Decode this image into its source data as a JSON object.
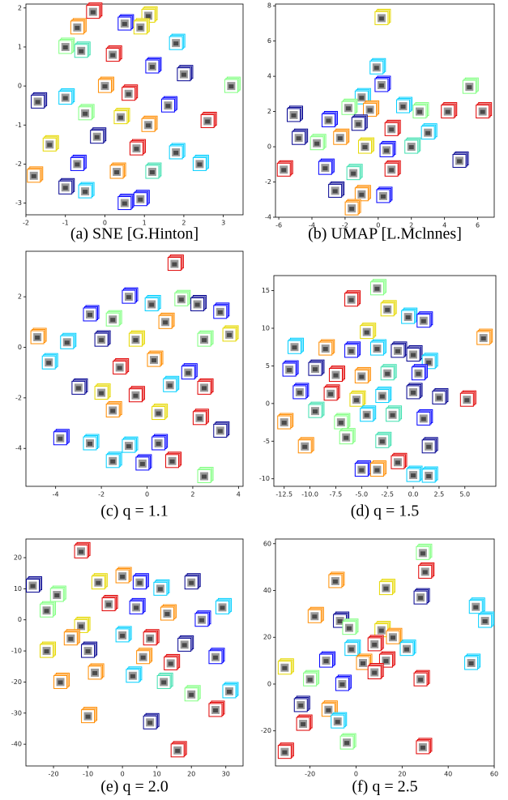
{
  "chart_data": [
    {
      "type": "scatter",
      "caption": "(a) SNE [G.Hinton]",
      "xlim": [
        -2,
        3.5
      ],
      "xticks": [
        -2,
        -1,
        0,
        1,
        2,
        3
      ],
      "ylim": [
        -3.3,
        2.1
      ],
      "yticks": [
        -3,
        -2,
        -1,
        0,
        1,
        2
      ],
      "x": [
        -0.3,
        0.5,
        1.1,
        0.9,
        -0.7,
        -1.0,
        -0.6,
        1.8,
        0.2,
        1.2,
        2.0,
        3.2,
        -1.7,
        -1.0,
        0,
        0.6,
        1.6,
        -0.5,
        0.4,
        1.1,
        2.6,
        -1.4,
        -0.2,
        0.8,
        1.8,
        2.4,
        -1.8,
        -0.7,
        0.3,
        1.2,
        -1.0,
        -0.5,
        0.5,
        0.9
      ],
      "values": [
        1.9,
        1.6,
        1.8,
        1.5,
        1.5,
        1.0,
        0.9,
        1.1,
        0.8,
        0.5,
        0.3,
        0,
        -0.4,
        -0.3,
        0,
        -0.2,
        -0.5,
        -0.7,
        -0.8,
        -1.0,
        -0.9,
        -1.5,
        -1.3,
        -1.6,
        -1.7,
        -2.0,
        -2.3,
        -2.0,
        -2.2,
        -2.2,
        -2.6,
        -2.7,
        -3.0,
        -2.9
      ],
      "colors": [
        "#e00000",
        "#0000ff",
        "#e6d800",
        "#e6d800",
        "#ff8c00",
        "#80ff80",
        "#40e0b0",
        "#00cfff",
        "#e00000",
        "#0000ff",
        "#00008f",
        "#80ff80",
        "#00008f",
        "#00cfff",
        "#ff8c00",
        "#e00000",
        "#0000ff",
        "#80ff80",
        "#e6d800",
        "#ff8c00",
        "#e00000",
        "#e6d800",
        "#00008f",
        "#e00000",
        "#00cfff",
        "#00cfff",
        "#ff8c00",
        "#0000ff",
        "#ff8c00",
        "#40e0b0",
        "#00008f",
        "#00cfff",
        "#0000ff",
        "#0000ff"
      ]
    },
    {
      "type": "scatter",
      "caption": "(b) UMAP [L.Mclnnes]",
      "xlim": [
        -6.2,
        7
      ],
      "xticks": [
        -6,
        -4,
        -2,
        0,
        2,
        4,
        6
      ],
      "ylim": [
        -4,
        8.1
      ],
      "yticks": [
        -4,
        -2,
        0,
        2,
        4,
        6,
        8
      ],
      "x": [
        0.2,
        -0.1,
        0.2,
        -1.0,
        -1.8,
        -0.5,
        1.5,
        2.5,
        4.2,
        5.5,
        6.3,
        -5.1,
        -3,
        -1.2,
        0.8,
        3.0,
        -4.8,
        -3.7,
        -2.3,
        -0.8,
        0.5,
        2.0,
        4.9,
        -5.7,
        -3.2,
        -1.5,
        0.8,
        -2.6,
        -1.0,
        0.3,
        -1.6
      ],
      "values": [
        7.3,
        4.5,
        3.5,
        2.8,
        2.2,
        2.1,
        2.3,
        2.0,
        2.0,
        3.4,
        2.0,
        1.8,
        1.5,
        1.3,
        1.0,
        0.8,
        0.5,
        0.2,
        0.5,
        0.0,
        -0.2,
        0,
        -0.8,
        -1.3,
        -1.2,
        -1.5,
        -1.3,
        -2.5,
        -2.7,
        -2.8,
        -3.5
      ],
      "colors": [
        "#e6d800",
        "#00cfff",
        "#0000ff",
        "#00cfff",
        "#80ff80",
        "#ff8c00",
        "#00cfff",
        "#80ff80",
        "#e00000",
        "#80ff80",
        "#e00000",
        "#00008f",
        "#0000ff",
        "#00008f",
        "#e00000",
        "#00cfff",
        "#00008f",
        "#80ff80",
        "#ff8c00",
        "#e6d800",
        "#0000ff",
        "#40e0b0",
        "#00008f",
        "#e00000",
        "#0000ff",
        "#40e0b0",
        "#e00000",
        "#00008f",
        "#ff8c00",
        "#0000ff",
        "#ff8c00"
      ]
    },
    {
      "type": "scatter",
      "caption": "(c) q = 1.1",
      "xlim": [
        -5.3,
        4.2
      ],
      "xticks": [
        -4,
        -2,
        0,
        2,
        4
      ],
      "ylim": [
        -5.5,
        3.8
      ],
      "yticks": [
        -4,
        -2,
        0,
        2
      ],
      "x": [
        1.2,
        -0.8,
        0.2,
        1.5,
        2.2,
        3.2,
        -2.5,
        -1.5,
        0.8,
        3.6,
        -4.8,
        -3.5,
        -2,
        -0.5,
        2.5,
        -4.3,
        -1.2,
        0.3,
        1.8,
        -3,
        -2.0,
        -0.5,
        1.0,
        2.5,
        -1.5,
        0.5,
        2.3,
        3.2,
        -3.8,
        -2.5,
        -0.8,
        0.5,
        -1.5,
        -0.2,
        1.1,
        2.5
      ],
      "values": [
        3.3,
        2.0,
        1.7,
        1.9,
        1.7,
        1.4,
        1.3,
        1.1,
        1.0,
        0.5,
        0.4,
        0.2,
        0.3,
        0.3,
        0.3,
        -0.6,
        -0.8,
        -0.5,
        -1.0,
        -1.6,
        -1.8,
        -1.9,
        -1.5,
        -1.6,
        -2.5,
        -2.6,
        -2.8,
        -3.3,
        -3.6,
        -3.8,
        -3.9,
        -3.8,
        -4.5,
        -4.6,
        -4.5,
        -5.1
      ],
      "colors": [
        "#e00000",
        "#0000ff",
        "#00cfff",
        "#80ff80",
        "#00008f",
        "#0000ff",
        "#0000ff",
        "#80ff80",
        "#ff8c00",
        "#e6d800",
        "#ff8c00",
        "#00cfff",
        "#00008f",
        "#e6d800",
        "#80ff80",
        "#00cfff",
        "#e00000",
        "#ff8c00",
        "#0000ff",
        "#00008f",
        "#e6d800",
        "#e00000",
        "#00cfff",
        "#e00000",
        "#ff8c00",
        "#e6d800",
        "#e00000",
        "#00008f",
        "#0000ff",
        "#00cfff",
        "#00cfff",
        "#0000ff",
        "#00cfff",
        "#0000ff",
        "#e00000",
        "#80ff80"
      ]
    },
    {
      "type": "scatter",
      "caption": "(d) q = 1.5",
      "xlim": [
        -13.5,
        8
      ],
      "xticks": [
        -12.5,
        {
          "value": -10,
          "label": "-10.0"
        },
        -7.5,
        {
          "value": -5,
          "label": "-5.0"
        },
        -2.5,
        {
          "value": 0,
          "label": "0.0"
        },
        2.5,
        {
          "value": 5,
          "label": "5.0"
        }
      ],
      "ylim": [
        -11,
        17
      ],
      "yticks": [
        -10,
        -5,
        0,
        5,
        10,
        15
      ],
      "x": [
        -3.5,
        -6,
        -2.5,
        -0.5,
        1,
        -4.5,
        6.8,
        -11.5,
        -8.5,
        -6,
        -3.5,
        -1.5,
        0,
        1.5,
        -12,
        -9.5,
        -7.5,
        -5,
        -2.5,
        0.5,
        -11,
        -8,
        -5.5,
        -3,
        0,
        2.5,
        5.2,
        -12.5,
        -9.5,
        -7,
        -4.5,
        -2,
        1,
        -10.5,
        -6.5,
        -3,
        1.5,
        -1.5,
        -5,
        -3.5,
        0,
        1.5
      ],
      "values": [
        15.3,
        13.8,
        12.5,
        11.5,
        11,
        9.5,
        8.7,
        7.5,
        7.3,
        7,
        7.3,
        7,
        6.5,
        5.5,
        4.5,
        4.6,
        3.8,
        3.6,
        4.0,
        4.0,
        1.5,
        1.3,
        0.5,
        1,
        1.5,
        0.8,
        0.5,
        -2.5,
        -1,
        -2.5,
        -1.5,
        -1.5,
        -2,
        -5.7,
        -4.5,
        -5,
        -5.7,
        -7.8,
        -8.8,
        -8.8,
        -9.5,
        -9.6
      ],
      "colors": [
        "#80ff80",
        "#e00000",
        "#e6d800",
        "#00cfff",
        "#0000ff",
        "#e6d800",
        "#ff8c00",
        "#00cfff",
        "#ff8c00",
        "#0000ff",
        "#00cfff",
        "#00008f",
        "#00008f",
        "#00cfff",
        "#0000ff",
        "#00008f",
        "#e00000",
        "#ff8c00",
        "#40e0b0",
        "#0000ff",
        "#0000ff",
        "#e00000",
        "#e6d800",
        "#00cfff",
        "#00008f",
        "#00008f",
        "#e00000",
        "#ff8c00",
        "#40e0b0",
        "#80ff80",
        "#00cfff",
        "#40e0b0",
        "#0000ff",
        "#ff8c00",
        "#80ff80",
        "#40e0b0",
        "#00008f",
        "#e00000",
        "#0000ff",
        "#ff8c00",
        "#00cfff",
        "#00cfff"
      ]
    },
    {
      "type": "scatter",
      "caption": "(e) q = 2.0",
      "xlim": [
        -28,
        35
      ],
      "xticks": [
        -20,
        -10,
        0,
        10,
        20,
        30
      ],
      "ylim": [
        -47,
        26
      ],
      "yticks": [
        -40,
        -30,
        -20,
        -10,
        0,
        10,
        20
      ],
      "x": [
        -26,
        -12,
        -19,
        -7,
        0,
        5,
        11,
        20,
        29,
        -22,
        -12,
        -4,
        4,
        13,
        23,
        -22,
        -15,
        0,
        8,
        18,
        -10,
        6,
        14,
        27,
        -18,
        -8,
        3,
        12,
        20,
        31,
        27,
        -10,
        8,
        16
      ],
      "values": [
        11,
        22,
        8,
        12,
        14,
        12,
        10,
        12,
        4,
        3,
        -2,
        5,
        4,
        2,
        0,
        -10,
        -6,
        -5,
        -6,
        -8,
        -10,
        -12,
        -14,
        -12,
        -20,
        -17,
        -18,
        -20,
        -24,
        -23,
        -29,
        -31,
        -33,
        -42
      ],
      "colors": [
        "#00008f",
        "#e00000",
        "#80ff80",
        "#e6d800",
        "#ff8c00",
        "#0000ff",
        "#00cfff",
        "#00008f",
        "#00cfff",
        "#80ff80",
        "#e6d800",
        "#e00000",
        "#0000ff",
        "#ff8c00",
        "#0000ff",
        "#e6d800",
        "#ff8c00",
        "#00cfff",
        "#e00000",
        "#00008f",
        "#00008f",
        "#ff8c00",
        "#e00000",
        "#0000ff",
        "#ff8c00",
        "#ff8c00",
        "#00cfff",
        "#40e0b0",
        "#80ff80",
        "#00cfff",
        "#e00000",
        "#ff8c00",
        "#00008f",
        "#e00000"
      ]
    },
    {
      "type": "scatter",
      "caption": "(f) q = 2.5",
      "xlim": [
        -35,
        60
      ],
      "xticks": [
        -20,
        0,
        20,
        40,
        60
      ],
      "ylim": [
        -35,
        62
      ],
      "yticks": [
        -20,
        0,
        20,
        40,
        60
      ],
      "x": [
        29,
        30,
        -9,
        13,
        28,
        52,
        56,
        -18,
        -7,
        -3,
        11,
        16,
        -2,
        8,
        22,
        -13,
        3,
        13,
        50,
        -31,
        -20,
        -6,
        8,
        28,
        -24,
        -12,
        -8,
        -4,
        -23,
        -31,
        29
      ],
      "values": [
        56,
        48,
        44,
        41,
        37,
        33,
        27,
        29,
        27,
        24,
        23,
        20,
        15,
        17,
        15,
        10,
        9,
        10,
        9,
        7,
        2,
        0,
        5,
        2,
        -9,
        -11,
        -16,
        -25,
        -17,
        -29,
        -27
      ],
      "colors": [
        "#80ff80",
        "#e00000",
        "#ff8c00",
        "#e6d800",
        "#00008f",
        "#00cfff",
        "#00cfff",
        "#ff8c00",
        "#00008f",
        "#80ff80",
        "#e6d800",
        "#ff8c00",
        "#00cfff",
        "#e00000",
        "#00cfff",
        "#0000ff",
        "#ff8c00",
        "#e00000",
        "#00cfff",
        "#e6d800",
        "#80ff80",
        "#0000ff",
        "#e00000",
        "#e00000",
        "#00008f",
        "#ff8c00",
        "#00cfff",
        "#80ff80",
        "#e00000",
        "#e00000",
        "#e00000"
      ]
    }
  ]
}
